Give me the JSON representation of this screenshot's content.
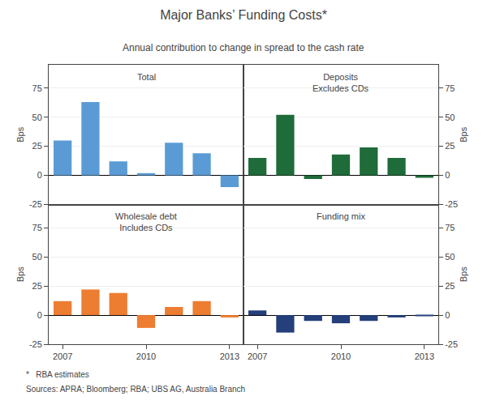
{
  "title": "Major Banks’ Funding Costs*",
  "subtitle": "Annual contribution to change in spread to the cash rate",
  "annotations": [
    "*   RBA estimates",
    "Sources: APRA; Bloomberg; RBA; UBS AG, Australia Branch"
  ],
  "chart_data": [
    {
      "type": "bar",
      "title": "Total",
      "categories": [
        "2007",
        null,
        null,
        "2010",
        null,
        null,
        "2013"
      ],
      "values": [
        30,
        63,
        12,
        2,
        28,
        19,
        -10
      ],
      "color": "#5b9bd5",
      "ylabel": "Bps",
      "ylim": [
        -25,
        95
      ],
      "yticks": [
        -25,
        0,
        25,
        50,
        75
      ],
      "grid": true,
      "tick_labels": "y"
    },
    {
      "type": "bar",
      "title": "Deposits\nExcludes CDs",
      "categories": [
        "2007",
        null,
        null,
        "2010",
        null,
        null,
        "2013"
      ],
      "values": [
        15,
        52,
        -3,
        18,
        24,
        15,
        -2
      ],
      "color": "#1f6b3a",
      "ylabel": "Bps",
      "ylim": [
        -25,
        95
      ],
      "yticks": [
        -25,
        0,
        25,
        50,
        75
      ],
      "grid": true,
      "tick_labels": "y"
    },
    {
      "type": "bar",
      "title": "Wholesale debt\nIncludes CDs",
      "categories": [
        "2007",
        null,
        null,
        "2010",
        null,
        null,
        "2013"
      ],
      "values": [
        12,
        22,
        19,
        -11,
        7,
        12,
        -2
      ],
      "color": "#ed7d31",
      "ylabel": "Bps",
      "ylim": [
        -25,
        95
      ],
      "yticks": [
        -25,
        0,
        25,
        50,
        75
      ],
      "grid": true
    },
    {
      "type": "bar",
      "title": "Funding mix",
      "categories": [
        "2007",
        null,
        null,
        "2010",
        null,
        null,
        "2013"
      ],
      "values": [
        4,
        -15,
        -5,
        -7,
        -5,
        -2,
        -1
      ],
      "color": "#243f7a",
      "ylabel": "Bps",
      "ylim": [
        -25,
        95
      ],
      "yticks": [
        -25,
        0,
        25,
        50,
        75
      ],
      "grid": true
    }
  ]
}
